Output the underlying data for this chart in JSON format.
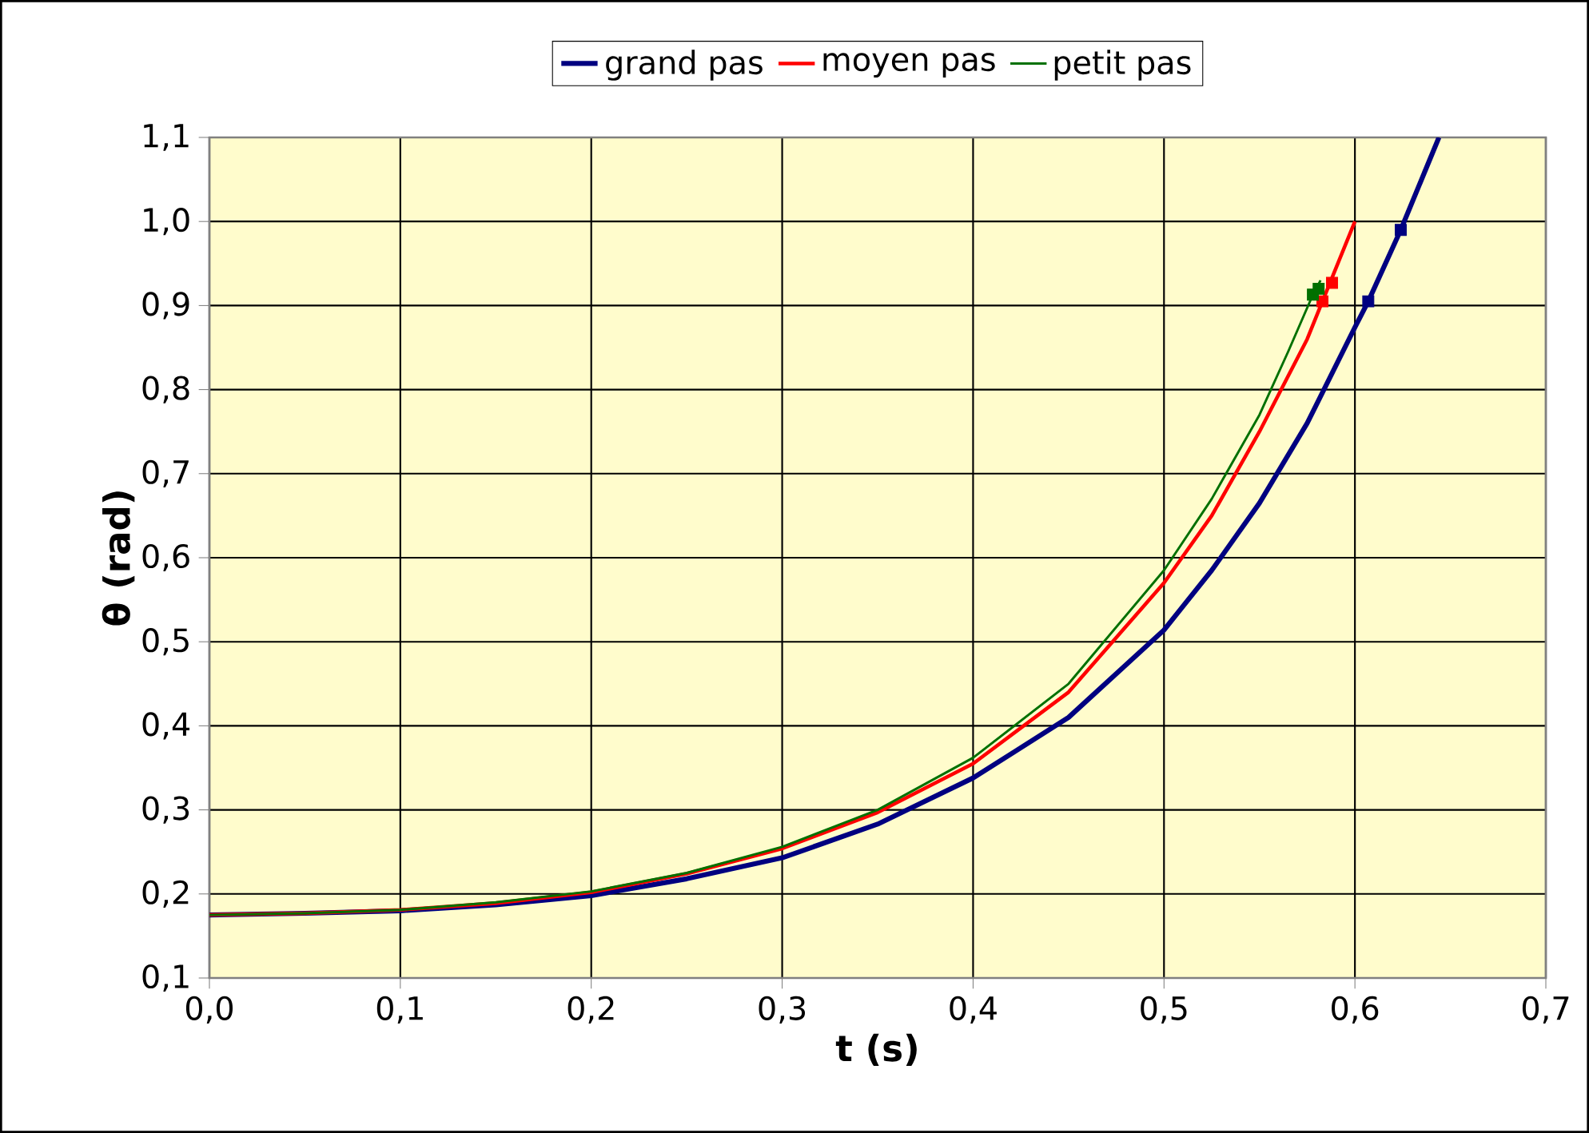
{
  "chart_data": {
    "type": "line",
    "xlabel": "t  (s)",
    "ylabel": "θ  (rad)",
    "xlim": [
      0,
      0.7
    ],
    "ylim": [
      0.1,
      1.1
    ],
    "xticks": [
      {
        "value": 0,
        "label": "0,0"
      },
      {
        "value": 0.1,
        "label": "0,1"
      },
      {
        "value": 0.2,
        "label": "0,2"
      },
      {
        "value": 0.3,
        "label": "0,3"
      },
      {
        "value": 0.4,
        "label": "0,4"
      },
      {
        "value": 0.5,
        "label": "0,5"
      },
      {
        "value": 0.6,
        "label": "0,6"
      },
      {
        "value": 0.7,
        "label": "0,7"
      }
    ],
    "yticks": [
      {
        "value": 0.1,
        "label": "0,1"
      },
      {
        "value": 0.2,
        "label": "0,2"
      },
      {
        "value": 0.3,
        "label": "0,3"
      },
      {
        "value": 0.4,
        "label": "0,4"
      },
      {
        "value": 0.5,
        "label": "0,5"
      },
      {
        "value": 0.6,
        "label": "0,6"
      },
      {
        "value": 0.7,
        "label": "0,7"
      },
      {
        "value": 0.8,
        "label": "0,8"
      },
      {
        "value": 0.9,
        "label": "0,9"
      },
      {
        "value": 1.0,
        "label": "1,0"
      },
      {
        "value": 1.1,
        "label": "1,1"
      }
    ],
    "grid": true,
    "legend": "top",
    "marker": "none",
    "line_style": "solid",
    "series": [
      {
        "name": "grand pas",
        "color": "#000080",
        "x": [
          0,
          0.05,
          0.1,
          0.15,
          0.2,
          0.25,
          0.3,
          0.35,
          0.4,
          0.45,
          0.5,
          0.525,
          0.55,
          0.575,
          0.6,
          0.607,
          0.624,
          0.644
        ],
        "values": [
          0.175,
          0.177,
          0.18,
          0.187,
          0.198,
          0.218,
          0.243,
          0.283,
          0.338,
          0.41,
          0.514,
          0.585,
          0.665,
          0.76,
          0.874,
          0.905,
          0.99,
          1.1
        ]
      },
      {
        "name": "moyen pas",
        "color": "#ff0000",
        "x": [
          0,
          0.05,
          0.1,
          0.15,
          0.2,
          0.25,
          0.3,
          0.35,
          0.4,
          0.45,
          0.5,
          0.525,
          0.55,
          0.575,
          0.583,
          0.6
        ],
        "values": [
          0.175,
          0.177,
          0.181,
          0.189,
          0.202,
          0.224,
          0.254,
          0.297,
          0.355,
          0.44,
          0.57,
          0.65,
          0.75,
          0.86,
          0.905,
          1.0
        ]
      },
      {
        "name": "petit pas",
        "color": "#007000",
        "x": [
          0,
          0.05,
          0.1,
          0.15,
          0.2,
          0.25,
          0.3,
          0.35,
          0.4,
          0.45,
          0.5,
          0.525,
          0.55,
          0.565,
          0.578,
          0.582
        ],
        "values": [
          0.175,
          0.177,
          0.181,
          0.19,
          0.203,
          0.225,
          0.256,
          0.3,
          0.362,
          0.45,
          0.585,
          0.67,
          0.77,
          0.845,
          0.913,
          0.93
        ]
      },
      {
        "type": "scatter",
        "marker": "square",
        "color": "#000080",
        "x": [
          0.607,
          0.624
        ],
        "values": [
          0.905,
          0.99
        ]
      },
      {
        "type": "scatter",
        "marker": "square",
        "color": "#ff0000",
        "x": [
          0.583,
          0.588
        ],
        "values": [
          0.905,
          0.927
        ]
      },
      {
        "type": "scatter",
        "marker": "square",
        "color": "#007000",
        "x": [
          0.578,
          0.581
        ],
        "values": [
          0.913,
          0.92
        ]
      }
    ]
  }
}
